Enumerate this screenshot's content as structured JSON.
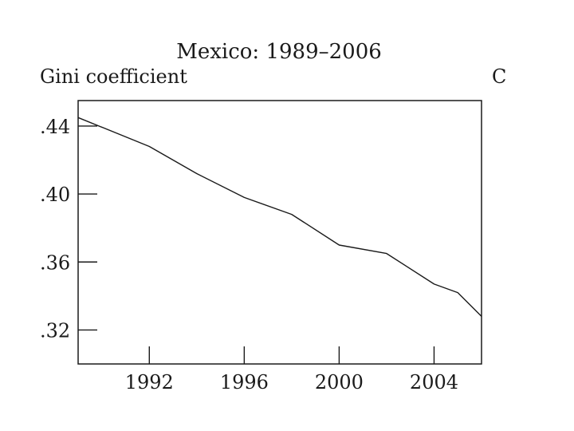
{
  "chart_data": {
    "type": "line",
    "title": "Mexico: 1989–2006",
    "ylabel": "Gini coefficient",
    "xlabel": "",
    "xlim": [
      1989,
      2006
    ],
    "ylim": [
      0.3,
      0.455
    ],
    "x_ticks": [
      {
        "value": 1992,
        "label": "1992"
      },
      {
        "value": 1996,
        "label": "1996"
      },
      {
        "value": 2000,
        "label": "2000"
      },
      {
        "value": 2004,
        "label": "2004"
      }
    ],
    "y_ticks": [
      {
        "value": 0.44,
        "label": ".44"
      },
      {
        "value": 0.4,
        "label": ".40"
      },
      {
        "value": 0.36,
        "label": ".36"
      },
      {
        "value": 0.32,
        "label": ".32"
      }
    ],
    "grid": false,
    "legend": "none",
    "series": [
      {
        "x": [
          1989,
          1992,
          1994,
          1996,
          1998,
          2000,
          2002,
          2004,
          2005,
          2006
        ],
        "y": [
          0.445,
          0.428,
          0.412,
          0.398,
          0.388,
          0.37,
          0.365,
          0.347,
          0.342,
          0.328
        ],
        "color": "#1a1a1a"
      }
    ],
    "cut_off_text": "C"
  }
}
